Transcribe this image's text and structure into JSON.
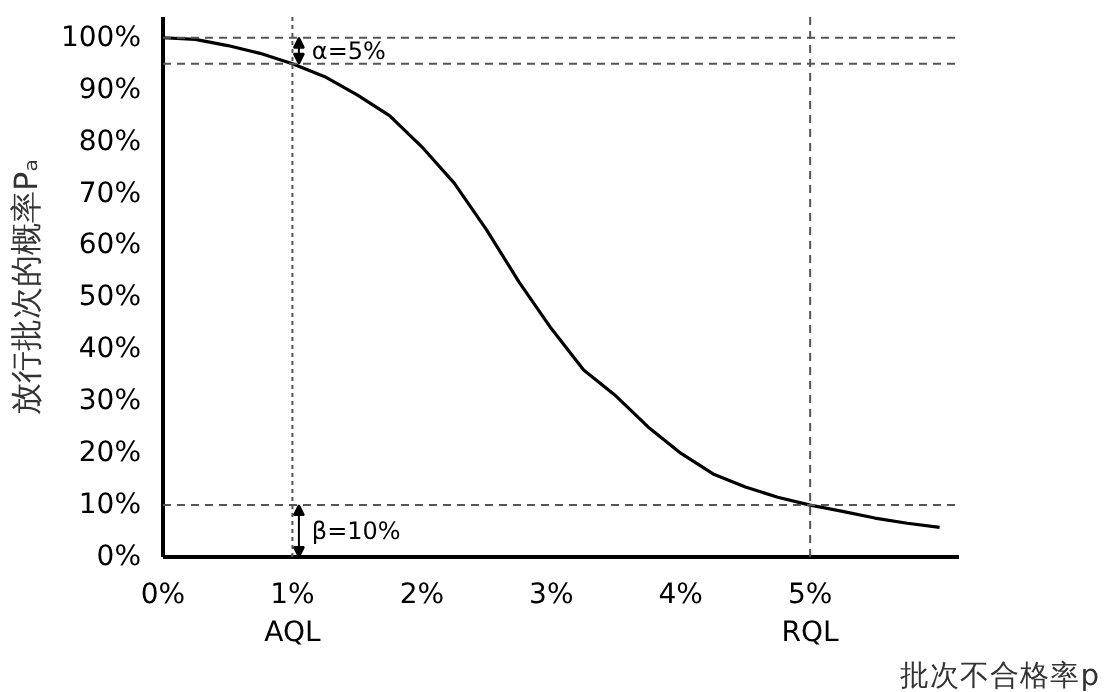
{
  "chart_data": {
    "type": "line",
    "xlabel": "批次不合格率p",
    "ylabel": "放行批次的概率Pₐ",
    "x": [
      0,
      0.25,
      0.5,
      0.75,
      1,
      1.25,
      1.5,
      1.75,
      2,
      2.25,
      2.5,
      2.75,
      3,
      3.25,
      3.5,
      3.75,
      4,
      4.25,
      4.5,
      4.75,
      5,
      5.25,
      5.5,
      5.75,
      6
    ],
    "series": [
      {
        "color": "#000000",
        "values": [
          100,
          99.7,
          98.5,
          97,
          95,
          92.5,
          89,
          85,
          79,
          72,
          63,
          53,
          44,
          36,
          31,
          25,
          20,
          16,
          13.5,
          11.5,
          10,
          8.8,
          7.5,
          6.5,
          5.7
        ]
      }
    ],
    "xlim": [
      0,
      6.15
    ],
    "ylim": [
      0,
      104
    ],
    "xticks": [
      {
        "value": 0,
        "label": "0%"
      },
      {
        "value": 1,
        "label": "1%\nAQL"
      },
      {
        "value": 2,
        "label": "2%"
      },
      {
        "value": 3,
        "label": "3%"
      },
      {
        "value": 4,
        "label": "4%"
      },
      {
        "value": 5,
        "label": "5%\nRQL"
      }
    ],
    "yticks": [
      {
        "value": 0,
        "label": "0%"
      },
      {
        "value": 10,
        "label": "10%"
      },
      {
        "value": 20,
        "label": "20%"
      },
      {
        "value": 30,
        "label": "30%"
      },
      {
        "value": 40,
        "label": "40%"
      },
      {
        "value": 50,
        "label": "50%"
      },
      {
        "value": 60,
        "label": "60%"
      },
      {
        "value": 70,
        "label": "70%"
      },
      {
        "value": 80,
        "label": "80%"
      },
      {
        "value": 90,
        "label": "90%"
      },
      {
        "value": 100,
        "label": "100%"
      }
    ],
    "ref_lines": [
      {
        "axis": "y",
        "value": 100,
        "line_style": "dashed",
        "color": "#555555"
      },
      {
        "axis": "y",
        "value": 95,
        "line_style": "dashed",
        "color": "#555555"
      },
      {
        "axis": "y",
        "value": 10,
        "line_style": "dashed",
        "color": "#555555"
      },
      {
        "axis": "x",
        "value": 1,
        "line_style": "dotted",
        "color": "#555555"
      },
      {
        "axis": "x",
        "value": 5,
        "line_style": "dashed",
        "color": "#555555"
      }
    ],
    "annotations": [
      {
        "text": "α=5%",
        "x": 1.05,
        "y": 97.5
      },
      {
        "text": "β=10%",
        "x": 1.05,
        "y": 5
      }
    ],
    "grid": false,
    "line_style": "solid",
    "marker": "none"
  }
}
